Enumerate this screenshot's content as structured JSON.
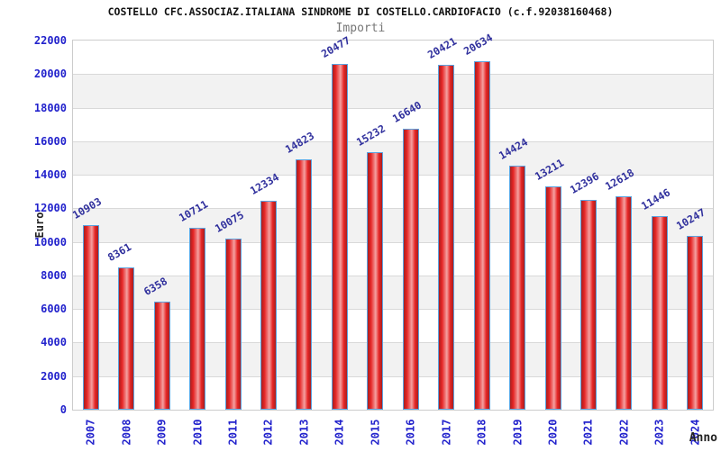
{
  "chart_data": {
    "type": "bar",
    "title": "COSTELLO CFC.ASSOCIAZ.ITALIANA SINDROME DI COSTELLO.CARDIOFACIO (c.f.92038160468)",
    "subtitle": "Importi",
    "xlabel": "Anno",
    "ylabel": "Euro",
    "categories": [
      "2007",
      "2008",
      "2009",
      "2010",
      "2011",
      "2012",
      "2013",
      "2014",
      "2015",
      "2016",
      "2017",
      "2018",
      "2019",
      "2020",
      "2021",
      "2022",
      "2023",
      "2024"
    ],
    "values": [
      10903,
      8361,
      6358,
      10711,
      10075,
      12334,
      14823,
      20477,
      15232,
      16640,
      20421,
      20634,
      14424,
      13211,
      12396,
      12618,
      11446,
      10247
    ],
    "ylim": [
      0,
      22000
    ],
    "ytick_step": 2000,
    "grid": "horizontal-only",
    "legend": "none",
    "bar_label_rotation_deg": -30,
    "x_label_rotation_deg": -90,
    "colors": {
      "bar_edge_dark": "#a81f1f",
      "bar_mid": "#e62525",
      "bar_highlight": "#f4a0a0",
      "bar_border": "#5ba3e0",
      "tick_label": "#2222cc",
      "value_label": "#30309d",
      "band_gray": "#f2f2f2",
      "band_white": "#ffffff",
      "gridline": "#d9d9d9",
      "plot_border": "#cccccc",
      "title_color": "#111111",
      "subtitle_color": "#777777",
      "axis_title_color": "#222222"
    }
  }
}
